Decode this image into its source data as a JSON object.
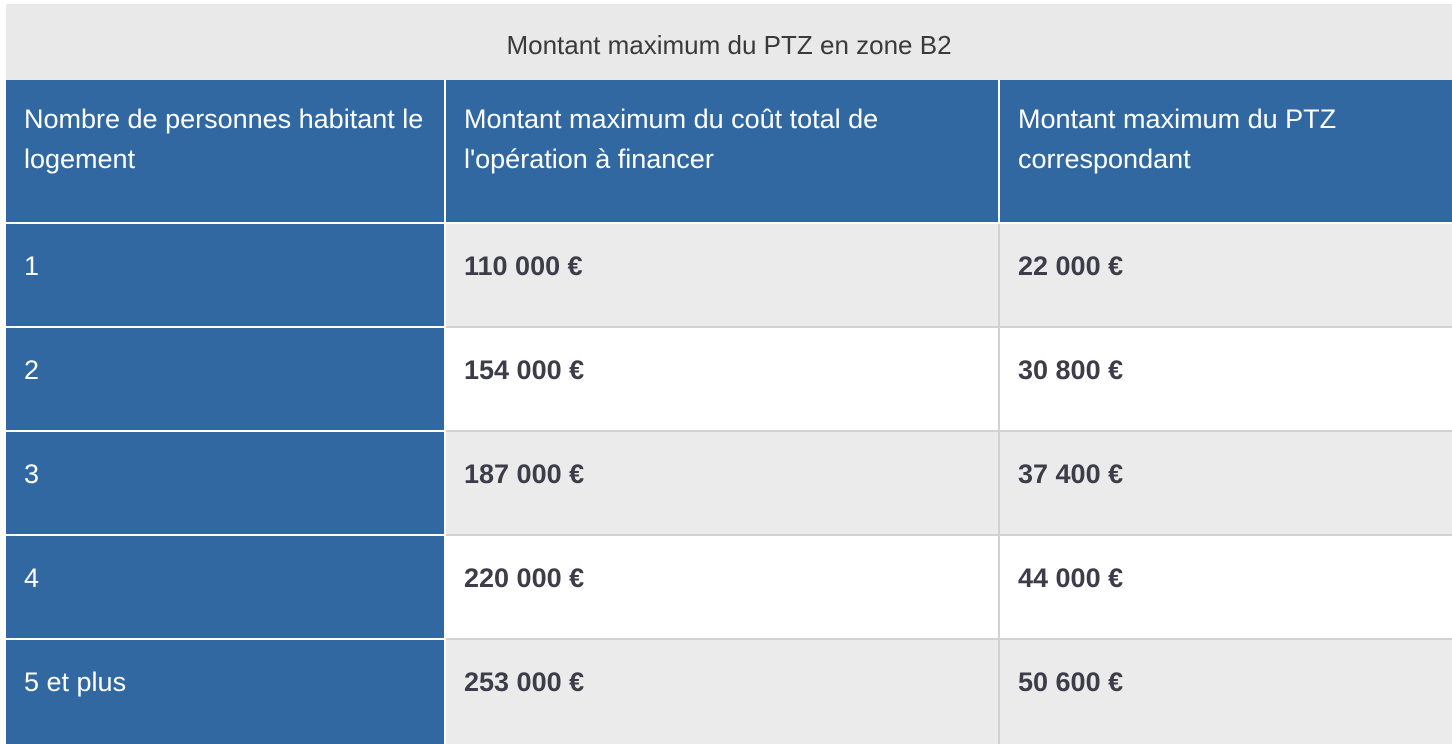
{
  "table": {
    "caption": "Montant maximum du PTZ en zone B2",
    "headers": [
      "Nombre de personnes habitant le logement",
      "Montant maximum du coût total de l'opération à financer",
      "Montant maximum du PTZ correspondant"
    ],
    "rows": [
      {
        "persons": "1",
        "cost": "110 000 €",
        "ptz": "22 000 €"
      },
      {
        "persons": "2",
        "cost": "154 000 €",
        "ptz": "30 800 €"
      },
      {
        "persons": "3",
        "cost": "187 000 €",
        "ptz": "37 400 €"
      },
      {
        "persons": "4",
        "cost": "220 000 €",
        "ptz": "44 000 €"
      },
      {
        "persons": "5 et plus",
        "cost": "253 000 €",
        "ptz": "50 600 €"
      }
    ]
  },
  "colors": {
    "header_blue": "#3168a2",
    "caption_gray": "#e9e9e9",
    "row_shade": "#ebebeb"
  }
}
